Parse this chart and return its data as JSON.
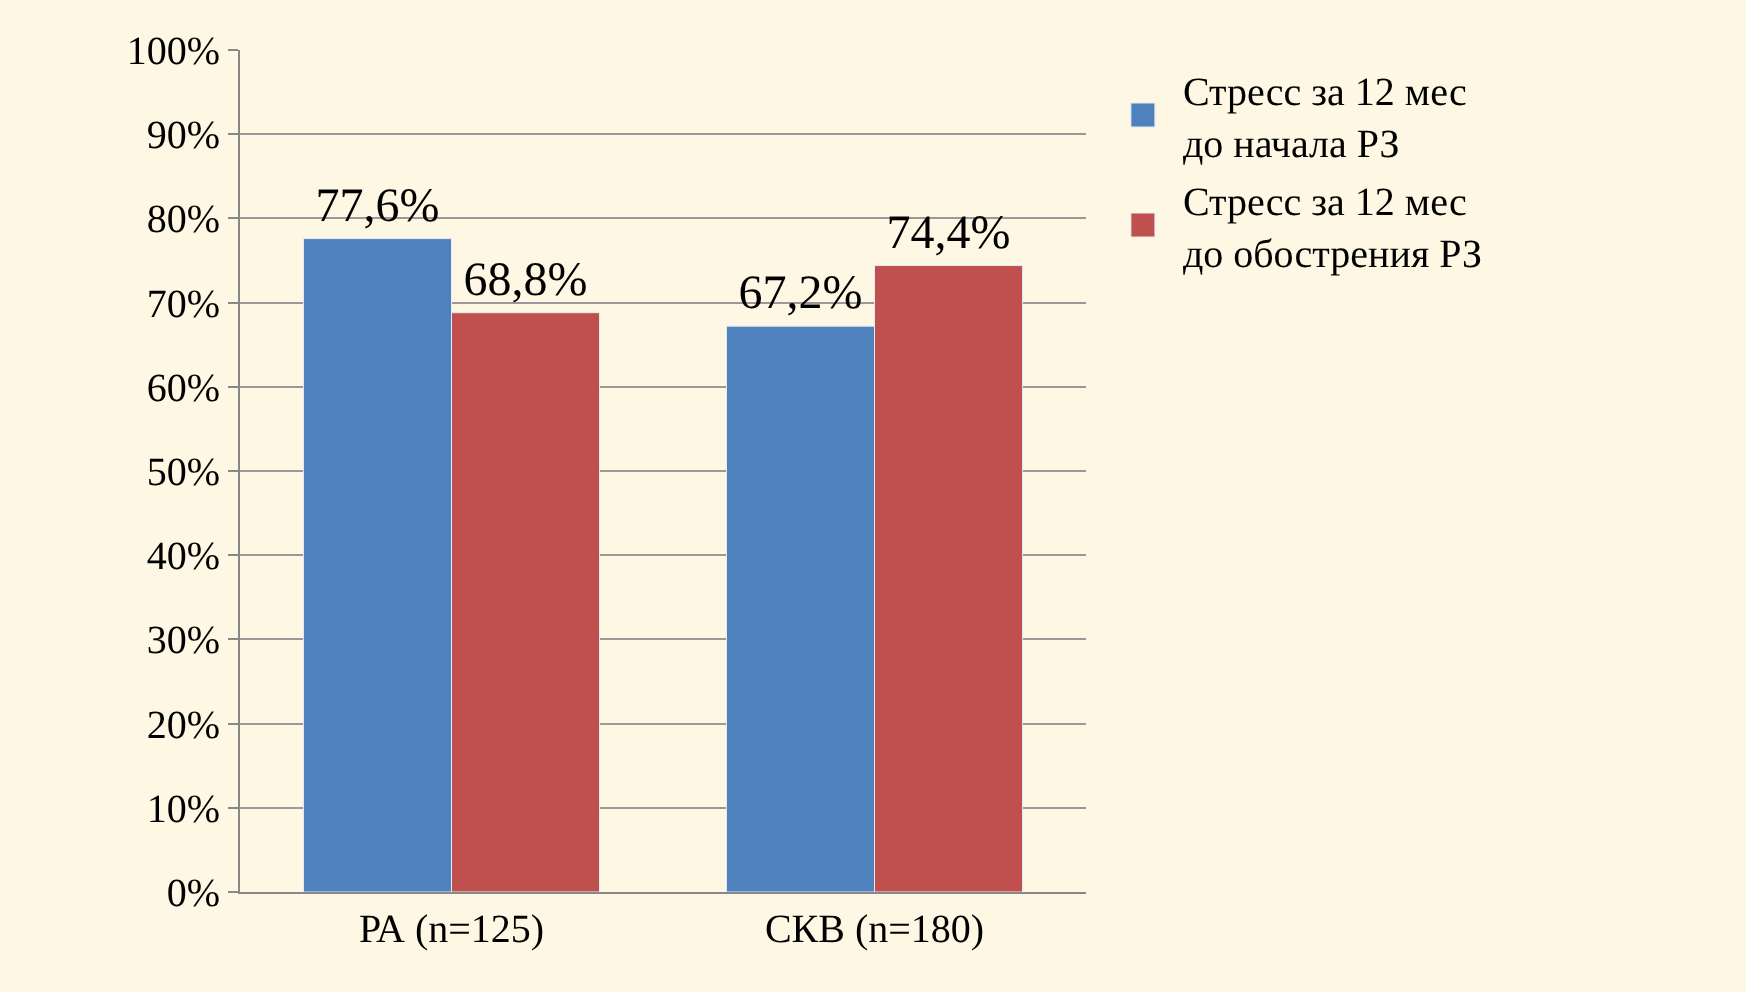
{
  "chart_data": {
    "type": "bar",
    "categories": [
      "РА (n=125)",
      "СКВ (n=180)"
    ],
    "series": [
      {
        "name": "Стресс за 12 мес до начала РЗ",
        "color": "#4f81bd",
        "values": [
          77.6,
          67.2
        ],
        "value_labels": [
          "77,6%",
          "67,2%"
        ]
      },
      {
        "name": "Стресс за 12 мес до обострения РЗ",
        "color": "#c0504d",
        "values": [
          68.8,
          74.4
        ],
        "value_labels": [
          "68,8%",
          "74,4%"
        ]
      }
    ],
    "ylim": [
      0,
      100
    ],
    "yticks": [
      {
        "value": 0,
        "label": "0%"
      },
      {
        "value": 10,
        "label": "10%"
      },
      {
        "value": 20,
        "label": "20%"
      },
      {
        "value": 30,
        "label": "30%"
      },
      {
        "value": 40,
        "label": "40%"
      },
      {
        "value": 50,
        "label": "50%"
      },
      {
        "value": 60,
        "label": "60%"
      },
      {
        "value": 70,
        "label": "70%"
      },
      {
        "value": 80,
        "label": "80%"
      },
      {
        "value": 90,
        "label": "90%"
      },
      {
        "value": 100,
        "label": "100%"
      }
    ],
    "grid": "y",
    "legend": "right"
  }
}
